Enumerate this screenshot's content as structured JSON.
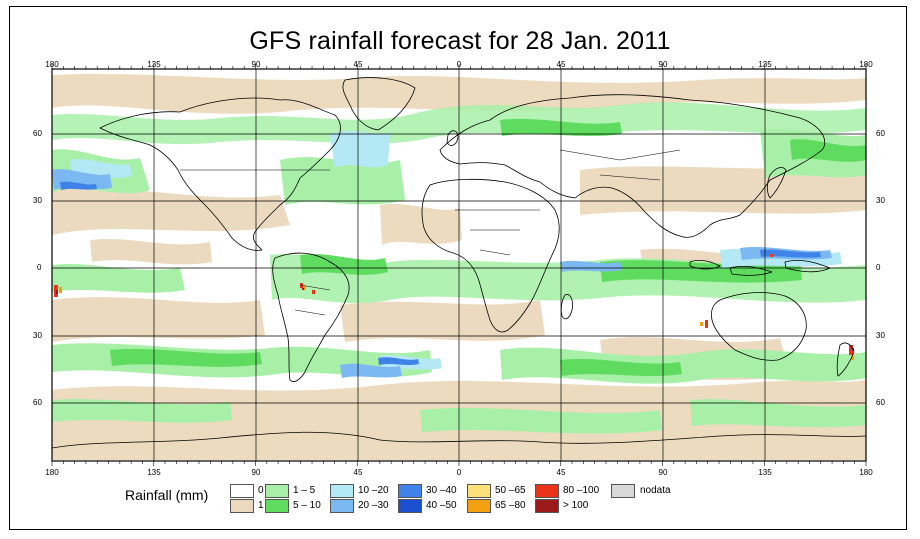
{
  "title": "GFS rainfall forecast for 28 Jan. 2011",
  "lon_ticks": [
    "180",
    "135",
    "90",
    "45",
    "0",
    "45",
    "90",
    "135",
    "180"
  ],
  "lat_ticks": [
    "60",
    "30",
    "0",
    "30",
    "60"
  ],
  "legend": {
    "title": "Rainfall (mm)",
    "items": [
      {
        "label": "0",
        "color": "#ffffff"
      },
      {
        "label": "1",
        "color": "#ecd9bd"
      },
      {
        "label": "1 – 5",
        "color": "#a8f0a8"
      },
      {
        "label": "5 – 10",
        "color": "#5fdc5f"
      },
      {
        "label": "10 –20",
        "color": "#b4e8f5"
      },
      {
        "label": "20 –30",
        "color": "#7cb8f2"
      },
      {
        "label": "30 –40",
        "color": "#3f83e8"
      },
      {
        "label": "40 –50",
        "color": "#1a4fd0"
      },
      {
        "label": "50 –65",
        "color": "#fde07a"
      },
      {
        "label": "65 –80",
        "color": "#f2a00f"
      },
      {
        "label": "80 –100",
        "color": "#e8321a"
      },
      {
        "label": "> 100",
        "color": "#9b1a1a"
      },
      {
        "label": "nodata",
        "color": "#d8d8d8"
      }
    ]
  }
}
